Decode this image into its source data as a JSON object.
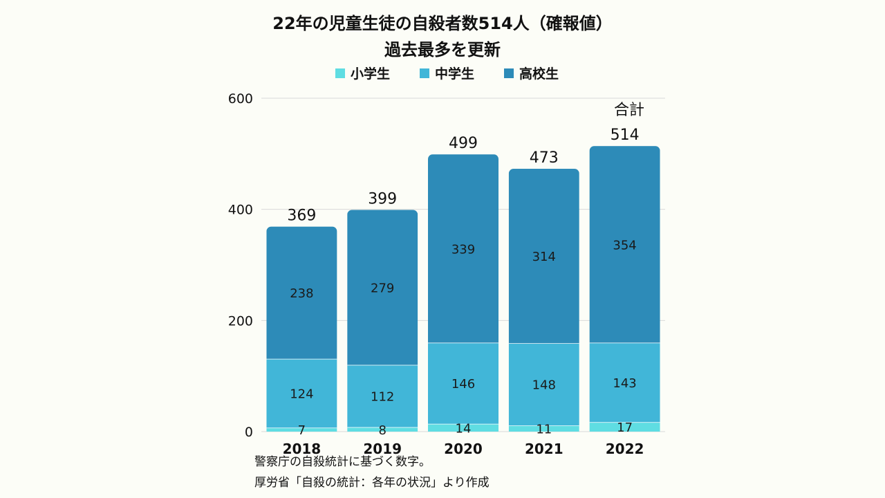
{
  "chart_data": {
    "type": "bar",
    "stacked": true,
    "title_lines": [
      "22年の児童生徒の自殺者数514人（確報値）",
      "過去最多を更新"
    ],
    "categories": [
      "2018",
      "2019",
      "2020",
      "2021",
      "2022"
    ],
    "series": [
      {
        "name": "小学生",
        "color": "#5fdde2",
        "values": [
          7,
          8,
          14,
          11,
          17
        ]
      },
      {
        "name": "中学生",
        "color": "#41b6d8",
        "values": [
          124,
          112,
          146,
          148,
          143
        ]
      },
      {
        "name": "高校生",
        "color": "#2d8bb8",
        "values": [
          238,
          279,
          339,
          314,
          354
        ]
      }
    ],
    "totals": [
      369,
      399,
      499,
      473,
      514
    ],
    "total_annotation": "合計",
    "yticks": [
      0,
      200,
      400,
      600
    ],
    "ylim": [
      0,
      600
    ],
    "grid": true,
    "legend_position": "top-center",
    "notes": [
      "警察庁の自殺統計に基づく数字。",
      "厚労省「自殺の統計：各年の状況」より作成"
    ]
  }
}
